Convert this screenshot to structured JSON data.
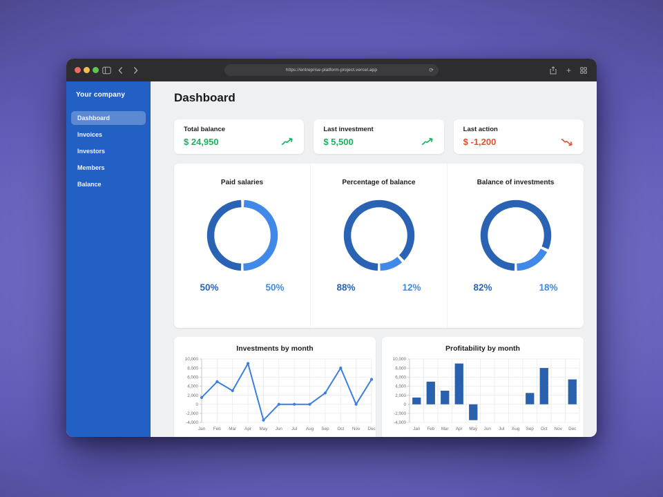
{
  "browser": {
    "url": "https://entreprise-platform-project.vercel.app",
    "icons": {
      "refresh": "⟳",
      "plus": "+"
    },
    "traffic_lights": {
      "close": "#ee6a5f",
      "minimize": "#f5bd4f",
      "zoom": "#61c354"
    }
  },
  "sidebar": {
    "company": "Your company",
    "items": [
      {
        "label": "Dashboard",
        "active": true
      },
      {
        "label": "Invoices",
        "active": false
      },
      {
        "label": "Investors",
        "active": false
      },
      {
        "label": "Members",
        "active": false
      },
      {
        "label": "Balance",
        "active": false
      }
    ]
  },
  "page": {
    "title": "Dashboard"
  },
  "stats": [
    {
      "label": "Total balance",
      "value": "$ 24,950",
      "trend": "up",
      "color": "#1ab160"
    },
    {
      "label": "Last investment",
      "value": "$ 5,500",
      "trend": "up",
      "color": "#1ab160"
    },
    {
      "label": "Last action",
      "value": "$ -1,200",
      "trend": "down",
      "color": "#e2512f"
    }
  ],
  "donuts": {
    "primary_color": "#2a63b4",
    "secondary_color": "#4189e8",
    "items": [
      {
        "title": "Paid salaries",
        "primary_pct": 50,
        "secondary_pct": 50
      },
      {
        "title": "Percentage of balance",
        "primary_pct": 88,
        "secondary_pct": 12
      },
      {
        "title": "Balance of investments",
        "primary_pct": 82,
        "secondary_pct": 18
      }
    ]
  },
  "chart_data": [
    {
      "type": "line",
      "title": "Investments by month",
      "categories": [
        "Jan",
        "Feb",
        "Mar",
        "Apr",
        "May",
        "Jun",
        "Jul",
        "Aug",
        "Sep",
        "Oct",
        "Nov",
        "Dec"
      ],
      "values": [
        1500,
        5000,
        3000,
        9000,
        -3500,
        0,
        0,
        0,
        2500,
        8000,
        0,
        5500
      ],
      "ylim": [
        -4000,
        10000
      ],
      "ytick_step": 2000,
      "grid": true,
      "legend": "none",
      "color": "#3b7edd"
    },
    {
      "type": "bar",
      "title": "Profitability by month",
      "categories": [
        "Jan",
        "Feb",
        "Mar",
        "Apr",
        "May",
        "Jun",
        "Jul",
        "Aug",
        "Sep",
        "Oct",
        "Nov",
        "Dec"
      ],
      "values": [
        1500,
        5000,
        3000,
        9000,
        -3500,
        0,
        0,
        0,
        2500,
        8000,
        0,
        5500
      ],
      "ylim": [
        -4000,
        10000
      ],
      "ytick_step": 2000,
      "grid": true,
      "legend": "none",
      "color": "#2a61ae"
    }
  ]
}
